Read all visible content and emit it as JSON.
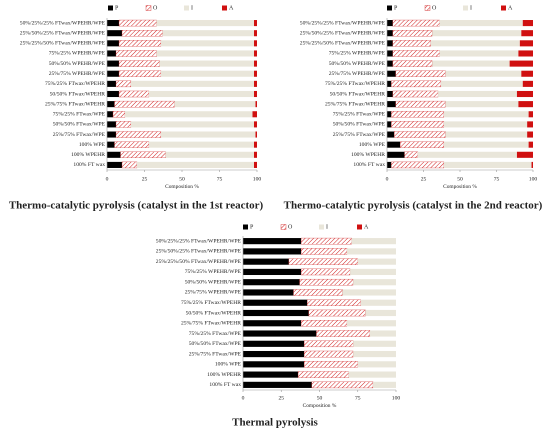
{
  "chart_data": [
    {
      "type": "bar",
      "orientation": "horizontal",
      "stacked": true,
      "title": "Thermo-catalytic pyrolysis (catalyst in the 1st reactor)",
      "xlabel": "Composition %",
      "categories": [
        "50%/25%/25% FTwax/WPEHR/WPE",
        "25%/50%/25% FTwax/WPEHR/WPE",
        "25%/25%/50% FTwax/WPEHR/WPE",
        "75%/25% WPEHR/WPE",
        "50%/50% WPEHR/WPE",
        "25%/75% WPEHR/WPE",
        "75%/25% FTwax/WPEHR",
        "50/50% FTwax/WPEHR",
        "25%/75% FTwax/WPEHR",
        "75%/25% FTwax/WPE",
        "50%/50% FTwax/WPE",
        "25%/75% FTwax/WPE",
        "100% WPE",
        "100% WPEHR",
        "100% FT wax"
      ],
      "series": [
        {
          "name": "P",
          "color": "#000000",
          "values": [
            8,
            10,
            8,
            6,
            8,
            8,
            6,
            8,
            5,
            4,
            6,
            6,
            5,
            9,
            10
          ]
        },
        {
          "name": "O",
          "color": "#d02020",
          "hatch": true,
          "values": [
            25,
            27,
            28,
            27,
            27,
            28,
            10,
            20,
            40,
            8,
            10,
            30,
            23,
            30,
            10
          ]
        },
        {
          "name": "I",
          "color": "#e9e6da",
          "values": [
            65,
            61,
            62,
            65,
            63,
            62,
            82,
            70,
            54,
            85,
            82,
            63,
            70,
            59,
            78
          ]
        },
        {
          "name": "A",
          "color": "#d01010",
          "values": [
            2,
            2,
            2,
            2,
            2,
            2,
            2,
            2,
            1,
            3,
            2,
            1,
            2,
            2,
            2
          ]
        }
      ],
      "xlim": [
        0,
        100
      ],
      "xticks": [
        0,
        25,
        50,
        75,
        100
      ]
    },
    {
      "type": "bar",
      "orientation": "horizontal",
      "stacked": true,
      "title": "Thermo-catalytic pyrolysis (catalyst in the 2nd reactor)",
      "xlabel": "Composition %",
      "categories": [
        "50%/25%/25% FTwax/WPEHR/WPE",
        "25%/50%/25% FTwax/WPEHR/WPE",
        "25%/25%/50% FTwax/WPEHR/WPE",
        "75%/25% WPEHR/WPE",
        "50%/50% WPEHR/WPE",
        "25%/75% WPEHR/WPE",
        "75%/25% FTwax/WPEHR",
        "50/50% FTwax/WPEHR",
        "25%/75% FTwax/WPEHR",
        "75%/25% FTwax/WPE",
        "50%/50% FTwax/WPE",
        "25%/75% FTwax/WPE",
        "100% WPE",
        "100% WPEHR",
        "100% FT wax"
      ],
      "series": [
        {
          "name": "P",
          "color": "#000000",
          "values": [
            4,
            4,
            4,
            4,
            4,
            6,
            3,
            4,
            6,
            3,
            3,
            5,
            9,
            12,
            3
          ]
        },
        {
          "name": "O",
          "color": "#d02020",
          "hatch": true,
          "values": [
            32,
            27,
            26,
            32,
            27,
            34,
            34,
            31,
            34,
            36,
            36,
            35,
            30,
            9,
            36
          ]
        },
        {
          "name": "I",
          "color": "#e9e6da",
          "values": [
            57,
            61,
            61,
            54,
            53,
            52,
            56,
            54,
            50,
            58,
            57,
            56,
            58,
            68,
            60
          ]
        },
        {
          "name": "A",
          "color": "#d01010",
          "values": [
            7,
            8,
            9,
            10,
            16,
            8,
            7,
            11,
            10,
            3,
            4,
            4,
            3,
            11,
            1
          ]
        }
      ],
      "xlim": [
        0,
        100
      ],
      "xticks": [
        0,
        25,
        50,
        75,
        100
      ]
    },
    {
      "type": "bar",
      "orientation": "horizontal",
      "stacked": true,
      "title": "Thermal pyrolysis",
      "xlabel": "Composition %",
      "categories": [
        "50%/25%/25% FTwax/WPEHR/WPE",
        "25%/50%/25% FTwax/WPEHR/WPE",
        "25%/25%/50% FTwax/WPEHR/WPE",
        "75%/25% WPEHR/WPE",
        "50%/50% WPEHR/WPE",
        "25%/75% WPEHR/WPE",
        "75%/25% FTwax/WPEHR",
        "50/50% FTwax/WPEHR",
        "25%/75% FTwax/WPEHR",
        "75%/25% FTwax/WPE",
        "50%/50% FTwax/WPE",
        "25%/75% FTwax/WPE",
        "100% WPE",
        "100% WPEHR",
        "100% FT wax"
      ],
      "series": [
        {
          "name": "P",
          "color": "#000000",
          "values": [
            38,
            38,
            30,
            38,
            37,
            33,
            42,
            43,
            38,
            48,
            40,
            40,
            40,
            36,
            45
          ]
        },
        {
          "name": "O",
          "color": "#d02020",
          "hatch": true,
          "values": [
            33,
            30,
            45,
            32,
            35,
            32,
            35,
            37,
            30,
            35,
            32,
            32,
            35,
            33,
            40
          ]
        },
        {
          "name": "I",
          "color": "#e9e6da",
          "values": [
            29,
            32,
            25,
            30,
            28,
            35,
            23,
            20,
            32,
            17,
            28,
            28,
            25,
            31,
            15
          ]
        },
        {
          "name": "A",
          "color": "#d01010",
          "values": [
            0,
            0,
            0,
            0,
            0,
            0,
            0,
            0,
            0,
            0,
            0,
            0,
            0,
            0,
            0
          ]
        }
      ],
      "xlim": [
        0,
        100
      ],
      "xticks": [
        0,
        25,
        50,
        75,
        100
      ]
    }
  ]
}
